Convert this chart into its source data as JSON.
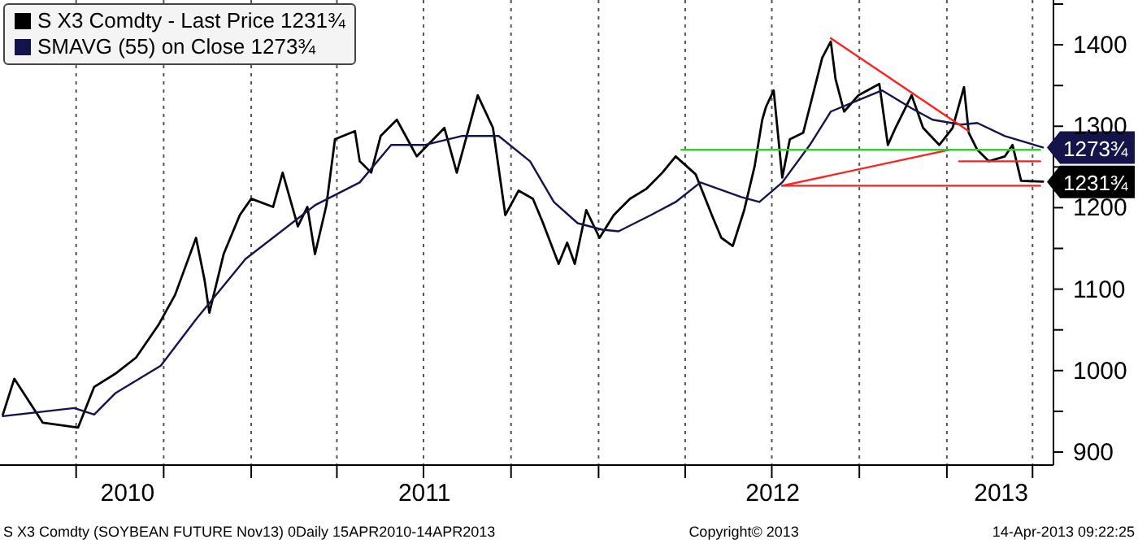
{
  "chart_data": {
    "type": "line",
    "xlim": [
      "2010-04-12",
      "2013-04-23"
    ],
    "ylim": [
      884,
      1455
    ],
    "xticks": [
      {
        "value": "2010-07-01",
        "label": null
      },
      {
        "value": "2010-08-24",
        "label": "2010"
      },
      {
        "value": "2010-10-01",
        "label": null
      },
      {
        "value": "2011-01-01",
        "label": null
      },
      {
        "value": "2011-04-01",
        "label": null
      },
      {
        "value": "2011-07-02",
        "label": "2011"
      },
      {
        "value": "2011-07-01",
        "label": null
      },
      {
        "value": "2011-10-01",
        "label": null
      },
      {
        "value": "2012-01-01",
        "label": null
      },
      {
        "value": "2012-04-01",
        "label": null
      },
      {
        "value": "2012-07-01",
        "label": null
      },
      {
        "value": "2012-07-02",
        "label": "2012"
      },
      {
        "value": "2012-10-01",
        "label": null
      },
      {
        "value": "2013-01-01",
        "label": null
      },
      {
        "value": "2013-02-27",
        "label": "2013"
      },
      {
        "value": "2013-04-01",
        "label": null
      }
    ],
    "yticks": [
      900,
      {
        "value": 950,
        "label": null
      },
      1000,
      {
        "value": 1050,
        "label": null
      },
      1100,
      {
        "value": 1150,
        "label": null
      },
      1200,
      {
        "value": 1250,
        "label": null
      },
      1300,
      {
        "value": 1350,
        "label": null
      },
      1400,
      {
        "value": 1450,
        "label": null
      }
    ],
    "grid": true,
    "legend": "top left",
    "marker": "none",
    "series": [
      {
        "name": "S X3 Comdty - Last Price 1231¾",
        "color": "#000000",
        "x": [
          "2010-04-15",
          "2010-04-27",
          "2010-05-27",
          "2010-07-03",
          "2010-07-20",
          "2010-08-11",
          "2010-09-02",
          "2010-09-26",
          "2010-10-13",
          "2010-11-04",
          "2010-11-13",
          "2010-11-18",
          "2010-12-03",
          "2010-12-20",
          "2011-01-01",
          "2011-01-24",
          "2011-02-03",
          "2011-02-19",
          "2011-03-01",
          "2011-03-09",
          "2011-03-21",
          "2011-03-30",
          "2011-04-20",
          "2011-04-25",
          "2011-05-07",
          "2011-05-17",
          "2011-06-03",
          "2011-06-24",
          "2011-07-23",
          "2011-08-05",
          "2011-08-27",
          "2011-09-12",
          "2011-09-25",
          "2011-10-09",
          "2011-10-24",
          "2011-11-03",
          "2011-11-20",
          "2011-11-29",
          "2011-12-07",
          "2011-12-19",
          "2012-01-02",
          "2012-01-17",
          "2012-02-03",
          "2012-02-20",
          "2012-03-08",
          "2012-03-22",
          "2012-04-12",
          "2012-04-29",
          "2012-05-09",
          "2012-05-21",
          "2012-06-02",
          "2012-06-13",
          "2012-06-21",
          "2012-06-25",
          "2012-07-03",
          "2012-07-12",
          "2012-07-20",
          "2012-08-03",
          "2012-08-10",
          "2012-08-23",
          "2012-09-01",
          "2012-09-06",
          "2012-09-15",
          "2012-09-30",
          "2012-10-22",
          "2012-10-31",
          "2012-11-08",
          "2012-11-25",
          "2012-12-07",
          "2012-12-24",
          "2013-01-07",
          "2013-01-19",
          "2013-01-24",
          "2013-02-02",
          "2013-02-14",
          "2013-03-03",
          "2013-03-11",
          "2013-03-20",
          "2013-04-12"
        ],
        "values": [
          946,
          990,
          936,
          930,
          980,
          996,
          1016,
          1057,
          1093,
          1163,
          1111,
          1071,
          1143,
          1191,
          1211,
          1201,
          1243,
          1177,
          1201,
          1143,
          1203,
          1284,
          1294,
          1257,
          1243,
          1288,
          1308,
          1263,
          1298,
          1243,
          1338,
          1298,
          1191,
          1221,
          1211,
          1183,
          1131,
          1157,
          1131,
          1197,
          1163,
          1191,
          1211,
          1223,
          1243,
          1263,
          1241,
          1191,
          1163,
          1153,
          1197,
          1251,
          1308,
          1324,
          1344,
          1237,
          1284,
          1292,
          1324,
          1384,
          1404,
          1358,
          1318,
          1338,
          1352,
          1277,
          1298,
          1338,
          1298,
          1277,
          1298,
          1348,
          1292,
          1271,
          1257,
          1263,
          1277,
          1233,
          1232
        ]
      },
      {
        "name": "SMAVG (55) on Close 1273¾",
        "color": "#14144a",
        "x": [
          "2010-04-15",
          "2010-06-29",
          "2010-07-20",
          "2010-08-11",
          "2010-09-28",
          "2010-11-04",
          "2010-12-26",
          "2011-03-09",
          "2011-04-25",
          "2011-05-28",
          "2011-07-02",
          "2011-08-10",
          "2011-09-18",
          "2011-10-21",
          "2011-11-15",
          "2011-12-10",
          "2012-01-05",
          "2012-01-22",
          "2012-02-25",
          "2012-03-22",
          "2012-04-17",
          "2012-05-30",
          "2012-06-18",
          "2012-07-12",
          "2012-08-10",
          "2012-09-01",
          "2012-09-30",
          "2012-10-25",
          "2012-11-25",
          "2012-12-17",
          "2013-01-16",
          "2013-02-02",
          "2013-03-03",
          "2013-04-12"
        ],
        "values": [
          944,
          954,
          946,
          972,
          1006,
          1063,
          1137,
          1203,
          1231,
          1277,
          1277,
          1288,
          1288,
          1257,
          1207,
          1181,
          1173,
          1171,
          1191,
          1207,
          1231,
          1213,
          1207,
          1231,
          1277,
          1318,
          1332,
          1344,
          1322,
          1308,
          1302,
          1304,
          1288,
          1274
        ]
      },
      {
        "color": "#ff2020",
        "x": [
          "2012-09-01",
          "2013-01-24"
        ],
        "values": [
          1408,
          1294
        ]
      },
      {
        "color": "#ff2020",
        "x": [
          "2012-07-12",
          "2013-01-03"
        ],
        "values": [
          1227,
          1271
        ]
      },
      {
        "color": "#ff2020",
        "x": [
          "2012-07-12",
          "2013-04-09"
        ],
        "values": [
          1227,
          1227
        ]
      },
      {
        "color": "#ff2020",
        "x": [
          "2013-01-14",
          "2013-04-09"
        ],
        "values": [
          1257,
          1257
        ]
      },
      {
        "color": "#22dd22",
        "x": [
          "2012-03-28",
          "2013-04-09"
        ],
        "values": [
          1271,
          1271
        ]
      }
    ],
    "annotations": [
      {
        "text": "1273¾",
        "x": "2013-04-12",
        "y": 1273.75
      },
      {
        "text": "1231¾",
        "x": "2013-04-12",
        "y": 1231.75
      },
      "S X3 Comdty (SOYBEAN FUTURE Nov13) 0Daily 15APR2010-14APR2013",
      "Copyright© 2013",
      "14-Apr-2013 09:22:25"
    ]
  }
}
